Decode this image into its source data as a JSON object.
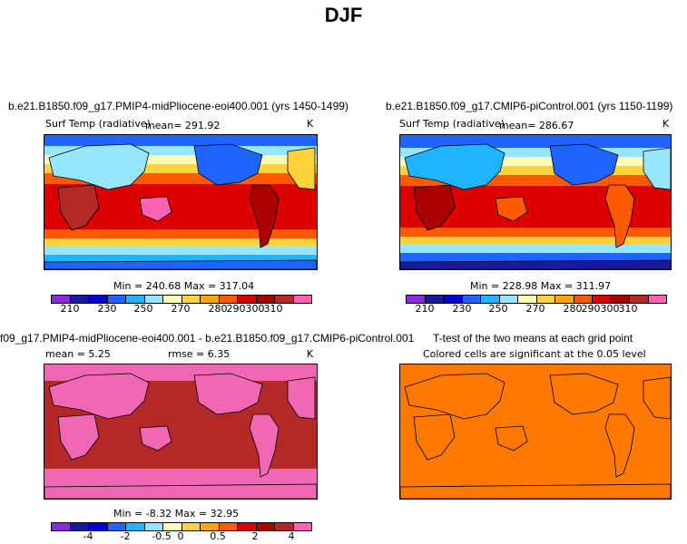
{
  "main_title": "DJF",
  "panels": {
    "top_left": {
      "title": "b.e21.B1850.f09_g17.PMIP4-midPliocene-eoi400.001 (yrs 1450-1499)",
      "variable": "Surf Temp (radiative)",
      "mean": "mean= 291.92",
      "units": "K",
      "minmax": "Min = 240.68 Max = 317.04"
    },
    "top_right": {
      "title": "b.e21.B1850.f09_g17.CMIP6-piControl.001 (yrs 1150-1199)",
      "variable": "Surf Temp (radiative)",
      "mean": "mean= 286.67",
      "units": "K",
      "minmax": "Min = 228.98 Max = 311.97"
    },
    "bottom_left": {
      "title": "f09_g17.PMIP4-midPliocene-eoi400.001 - b.e21.B1850.f09_g17.CMIP6-piControl.001",
      "mean": "mean =    5.25",
      "rmse": "rmse =    6.35",
      "units": "K",
      "minmax": "Min =  -8.32 Max =  32.95"
    },
    "bottom_right": {
      "title": "T-test of the two means at each grid point",
      "subtitle": "Colored cells are significant at the 0.05 level"
    }
  },
  "colorbars": {
    "absolute": {
      "colors": [
        "#8a2be2",
        "#1a1aa0",
        "#0000d8",
        "#1e64ff",
        "#1eb4ff",
        "#96e6ff",
        "#ffffb4",
        "#ffd23c",
        "#ffa500",
        "#ff5a00",
        "#dc0000",
        "#aa0000",
        "#b42828",
        "#ff64b4"
      ],
      "labels": [
        "210",
        "230",
        "250",
        "270",
        "280",
        "290",
        "300",
        "310"
      ]
    },
    "difference": {
      "colors": [
        "#8a2be2",
        "#1a1aa0",
        "#0000d8",
        "#1e64ff",
        "#1eb4ff",
        "#96e6ff",
        "#ffffb4",
        "#ffd23c",
        "#ffa500",
        "#ff5a00",
        "#dc0000",
        "#aa0000",
        "#b42828",
        "#ff64b4"
      ],
      "labels": [
        "-4",
        "-2",
        "-0.5",
        "0",
        "0.5",
        "2",
        "4"
      ]
    }
  },
  "map_colors": {
    "ttest": "#ff7800",
    "diff_bg": "#f068b4",
    "diff_main": "#b42828"
  }
}
